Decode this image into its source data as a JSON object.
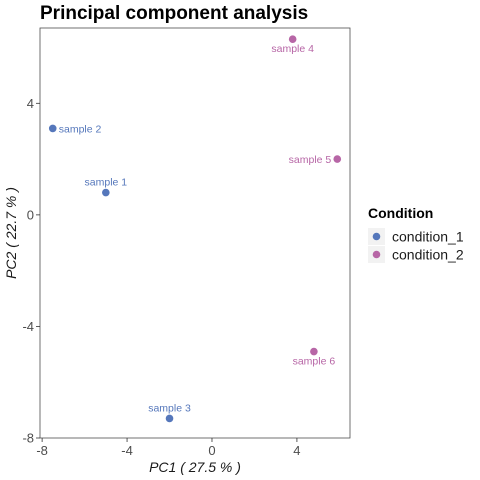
{
  "chart_data": {
    "type": "scatter",
    "title": "Principal component analysis",
    "xlabel": "PC1 ( 27.5 % )",
    "ylabel": "PC2 ( 22.7 % )",
    "xlim": [
      -8.1,
      6.5
    ],
    "ylim": [
      -8.0,
      6.7
    ],
    "x_ticks": [
      -8,
      -4,
      0,
      4
    ],
    "x_tick_labels": [
      "-8",
      "-4",
      "0",
      "4"
    ],
    "y_ticks": [
      -8,
      -4,
      0,
      4
    ],
    "y_tick_labels": [
      "-8",
      "-4",
      "0",
      "4"
    ],
    "grid": false,
    "legend": {
      "title": "Condition",
      "placement": "right",
      "entries": [
        {
          "label": "condition_1",
          "color": "#5577BB"
        },
        {
          "label": "condition_2",
          "color": "#B766A6"
        }
      ]
    },
    "series": [
      {
        "name": "condition_1",
        "color": "#5577BB",
        "points": [
          {
            "label": "sample 1",
            "x": -5.0,
            "y": 0.8
          },
          {
            "label": "sample 2",
            "x": -7.5,
            "y": 3.1
          },
          {
            "label": "sample 3",
            "x": -2.0,
            "y": -7.3
          }
        ]
      },
      {
        "name": "condition_2",
        "color": "#B766A6",
        "points": [
          {
            "label": "sample 4",
            "x": 3.8,
            "y": 6.3
          },
          {
            "label": "sample 5",
            "x": 5.9,
            "y": 2.0
          },
          {
            "label": "sample 6",
            "x": 4.8,
            "y": -4.9
          }
        ]
      }
    ]
  }
}
